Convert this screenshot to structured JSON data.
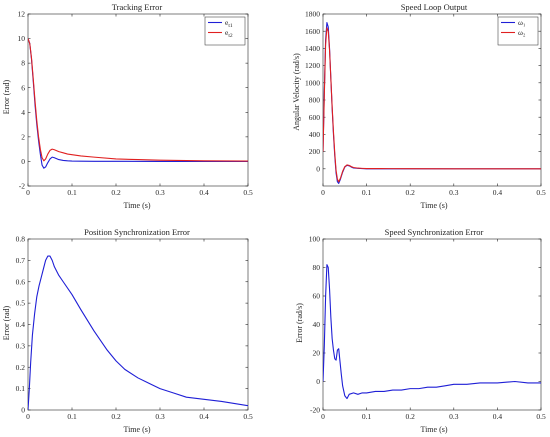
{
  "chart_data": [
    {
      "type": "line",
      "title": "Tracking Error",
      "xlabel": "Time (s)",
      "ylabel": "Error (rad)",
      "xlim": [
        0,
        0.5
      ],
      "ylim": [
        -2,
        12
      ],
      "xticks": [
        0,
        0.1,
        0.2,
        0.3,
        0.4,
        0.5
      ],
      "yticks": [
        -2,
        0,
        2,
        4,
        6,
        8,
        10,
        12
      ],
      "legend_position": "top-right",
      "series": [
        {
          "name": "e_{t1}",
          "color": "#1f1fd6",
          "x": [
            0,
            0.004,
            0.008,
            0.012,
            0.016,
            0.02,
            0.024,
            0.028,
            0.032,
            0.036,
            0.04,
            0.045,
            0.05,
            0.055,
            0.06,
            0.07,
            0.08,
            0.09,
            0.1,
            0.12,
            0.15,
            0.2,
            0.3,
            0.4,
            0.5
          ],
          "y": [
            10,
            9.6,
            8.3,
            6.5,
            4.6,
            3.0,
            1.7,
            0.6,
            -0.3,
            -0.55,
            -0.45,
            -0.1,
            0.2,
            0.35,
            0.3,
            0.15,
            0.08,
            0.05,
            0.03,
            0.02,
            0.01,
            0.01,
            0,
            0,
            0
          ]
        },
        {
          "name": "e_{t2}",
          "color": "#e02020",
          "x": [
            0,
            0.004,
            0.008,
            0.012,
            0.016,
            0.02,
            0.024,
            0.028,
            0.032,
            0.036,
            0.04,
            0.045,
            0.05,
            0.055,
            0.06,
            0.07,
            0.08,
            0.09,
            0.1,
            0.12,
            0.15,
            0.2,
            0.25,
            0.3,
            0.4,
            0.5
          ],
          "y": [
            10,
            9.6,
            8.4,
            6.7,
            4.9,
            3.3,
            2.0,
            1.0,
            0.3,
            0.05,
            0.2,
            0.6,
            0.9,
            1.0,
            0.95,
            0.8,
            0.7,
            0.6,
            0.55,
            0.45,
            0.35,
            0.2,
            0.15,
            0.1,
            0.05,
            0.03
          ]
        }
      ]
    },
    {
      "type": "line",
      "title": "Speed Loop Output",
      "xlabel": "Time (s)",
      "ylabel": "Angular Velocity (rad/s)",
      "xlim": [
        0,
        0.5
      ],
      "ylim": [
        -200,
        1800
      ],
      "xticks": [
        0,
        0.1,
        0.2,
        0.3,
        0.4,
        0.5
      ],
      "yticks": [
        0,
        200,
        400,
        600,
        800,
        1000,
        1200,
        1400,
        1600,
        1800
      ],
      "legend_position": "top-right",
      "series": [
        {
          "name": "ω₁",
          "color": "#1f1fd6",
          "x": [
            0,
            0.003,
            0.006,
            0.009,
            0.012,
            0.015,
            0.018,
            0.021,
            0.024,
            0.027,
            0.03,
            0.033,
            0.036,
            0.04,
            0.045,
            0.05,
            0.055,
            0.06,
            0.065,
            0.07,
            0.08,
            0.09,
            0.1,
            0.15,
            0.2,
            0.3,
            0.4,
            0.5
          ],
          "y": [
            200,
            900,
            1500,
            1700,
            1650,
            1400,
            1050,
            700,
            400,
            150,
            -50,
            -150,
            -170,
            -120,
            -40,
            20,
            40,
            35,
            20,
            10,
            5,
            2,
            0,
            0,
            0,
            0,
            0,
            0
          ]
        },
        {
          "name": "ω₂",
          "color": "#e02020",
          "x": [
            0,
            0.003,
            0.006,
            0.009,
            0.012,
            0.015,
            0.018,
            0.021,
            0.024,
            0.027,
            0.03,
            0.033,
            0.036,
            0.04,
            0.045,
            0.05,
            0.055,
            0.06,
            0.065,
            0.07,
            0.08,
            0.09,
            0.1,
            0.15,
            0.2,
            0.3,
            0.4,
            0.5
          ],
          "y": [
            200,
            850,
            1450,
            1640,
            1600,
            1380,
            1050,
            720,
            430,
            180,
            -20,
            -120,
            -150,
            -110,
            -30,
            25,
            45,
            40,
            25,
            15,
            8,
            5,
            3,
            2,
            1,
            0,
            0,
            0
          ]
        }
      ]
    },
    {
      "type": "line",
      "title": "Position Synchronization Error",
      "xlabel": "Time (s)",
      "ylabel": "Error (rad)",
      "xlim": [
        0,
        0.5
      ],
      "ylim": [
        0,
        0.8
      ],
      "xticks": [
        0,
        0.1,
        0.2,
        0.3,
        0.4,
        0.5
      ],
      "yticks": [
        0,
        0.1,
        0.2,
        0.3,
        0.4,
        0.5,
        0.6,
        0.7,
        0.8
      ],
      "series": [
        {
          "color": "#1f1fd6",
          "x": [
            0,
            0.003,
            0.006,
            0.01,
            0.015,
            0.02,
            0.025,
            0.03,
            0.035,
            0.04,
            0.045,
            0.05,
            0.055,
            0.06,
            0.07,
            0.08,
            0.1,
            0.12,
            0.15,
            0.18,
            0.2,
            0.22,
            0.25,
            0.28,
            0.3,
            0.33,
            0.36,
            0.4,
            0.44,
            0.47,
            0.5
          ],
          "y": [
            0,
            0.1,
            0.22,
            0.35,
            0.45,
            0.53,
            0.58,
            0.62,
            0.66,
            0.7,
            0.72,
            0.72,
            0.7,
            0.67,
            0.63,
            0.6,
            0.54,
            0.47,
            0.37,
            0.28,
            0.23,
            0.19,
            0.15,
            0.12,
            0.1,
            0.08,
            0.06,
            0.05,
            0.04,
            0.03,
            0.02
          ]
        }
      ]
    },
    {
      "type": "line",
      "title": "Speed Synchronization Error",
      "xlabel": "Time (s)",
      "ylabel": "Error (rad/s)",
      "xlim": [
        0,
        0.5
      ],
      "ylim": [
        -20,
        100
      ],
      "xticks": [
        0,
        0.1,
        0.2,
        0.3,
        0.4,
        0.5
      ],
      "yticks": [
        -20,
        0,
        20,
        40,
        60,
        80,
        100
      ],
      "series": [
        {
          "color": "#1f1fd6",
          "x": [
            0,
            0.003,
            0.006,
            0.009,
            0.012,
            0.015,
            0.018,
            0.021,
            0.024,
            0.027,
            0.03,
            0.033,
            0.036,
            0.039,
            0.042,
            0.045,
            0.05,
            0.055,
            0.06,
            0.07,
            0.08,
            0.09,
            0.1,
            0.12,
            0.14,
            0.16,
            0.18,
            0.2,
            0.22,
            0.24,
            0.26,
            0.28,
            0.3,
            0.33,
            0.36,
            0.4,
            0.44,
            0.47,
            0.5
          ],
          "y": [
            0,
            25,
            60,
            82,
            80,
            65,
            45,
            30,
            22,
            16,
            15,
            22,
            23,
            14,
            5,
            -3,
            -10,
            -12,
            -9,
            -8,
            -9,
            -8,
            -8,
            -7,
            -7,
            -6,
            -6,
            -5,
            -5,
            -4,
            -4,
            -3,
            -2,
            -2,
            -1,
            -1,
            0,
            -1,
            -1
          ]
        }
      ]
    }
  ]
}
